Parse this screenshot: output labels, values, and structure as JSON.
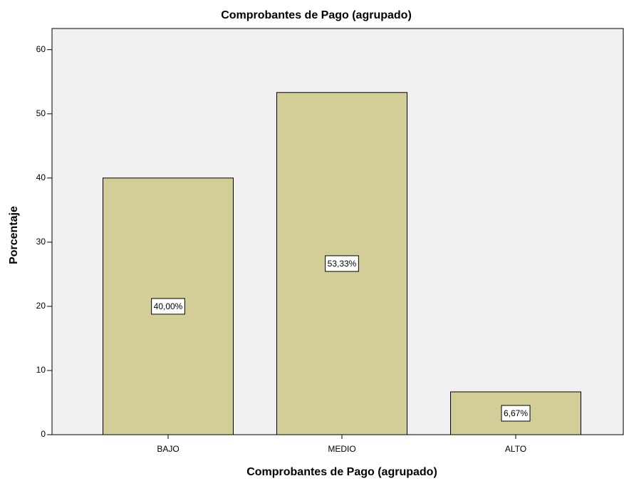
{
  "chart_data": {
    "type": "bar",
    "title": "Comprobantes de Pago (agrupado)",
    "x_label": "Comprobantes de Pago (agrupado)",
    "y_label": "Porcentaje",
    "categories": [
      "BAJO",
      "MEDIO",
      "ALTO"
    ],
    "values": [
      40,
      53.33,
      6.67
    ],
    "value_labels": [
      "40,00%",
      "53,33%",
      "6,67%"
    ],
    "color": "#d3ce97",
    "ylim": [
      0,
      63.3
    ],
    "yticks": [
      0,
      10,
      20,
      30,
      40,
      50,
      60
    ],
    "grid": false
  }
}
